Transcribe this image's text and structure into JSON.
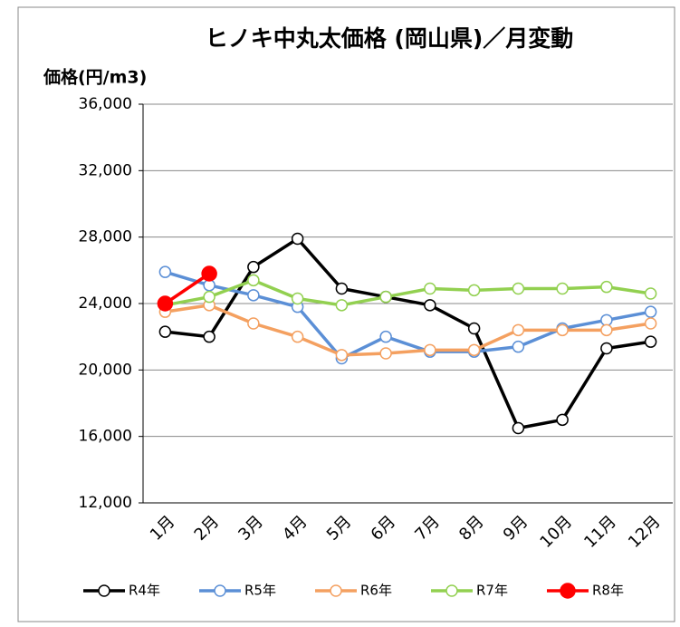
{
  "chart_data": {
    "type": "line",
    "title": "ヒノキ中丸太価格 (岡山県)／月変動",
    "y_label": "価格(円/m3)",
    "categories": [
      "1月",
      "2月",
      "3月",
      "4月",
      "5月",
      "6月",
      "7月",
      "8月",
      "9月",
      "10月",
      "11月",
      "12月"
    ],
    "series": [
      {
        "name": "R4年",
        "color": "#000000",
        "values": [
          22300,
          22000,
          26200,
          27900,
          24900,
          24400,
          23900,
          22500,
          16500,
          17000,
          21300,
          21700
        ]
      },
      {
        "name": "R5年",
        "color": "#5b8fd6",
        "values": [
          25900,
          25100,
          24500,
          23800,
          20700,
          22000,
          21100,
          21100,
          21400,
          22500,
          23000,
          23500
        ]
      },
      {
        "name": "R6年",
        "color": "#f4a060",
        "values": [
          23500,
          23900,
          22800,
          22000,
          20900,
          21000,
          21200,
          21200,
          22400,
          22400,
          22400,
          22800
        ]
      },
      {
        "name": "R7年",
        "color": "#92d050",
        "values": [
          23900,
          24400,
          25400,
          24300,
          23900,
          24400,
          24900,
          24800,
          24900,
          24900,
          25000,
          24600
        ]
      },
      {
        "name": "R8年",
        "color": "#ff0000",
        "values": [
          24000,
          25800,
          null,
          null,
          null,
          null,
          null,
          null,
          null,
          null,
          null,
          null
        ],
        "filled": true
      }
    ],
    "ylim": [
      12000,
      36000
    ],
    "yticks": [
      {
        "value": 12000,
        "label": "12,000"
      },
      {
        "value": 16000,
        "label": "16,000"
      },
      {
        "value": 20000,
        "label": "20,000"
      },
      {
        "value": 24000,
        "label": "24,000"
      },
      {
        "value": 28000,
        "label": "28,000"
      },
      {
        "value": 32000,
        "label": "32,000"
      },
      {
        "value": 36000,
        "label": "36,000"
      }
    ],
    "grid": true
  }
}
